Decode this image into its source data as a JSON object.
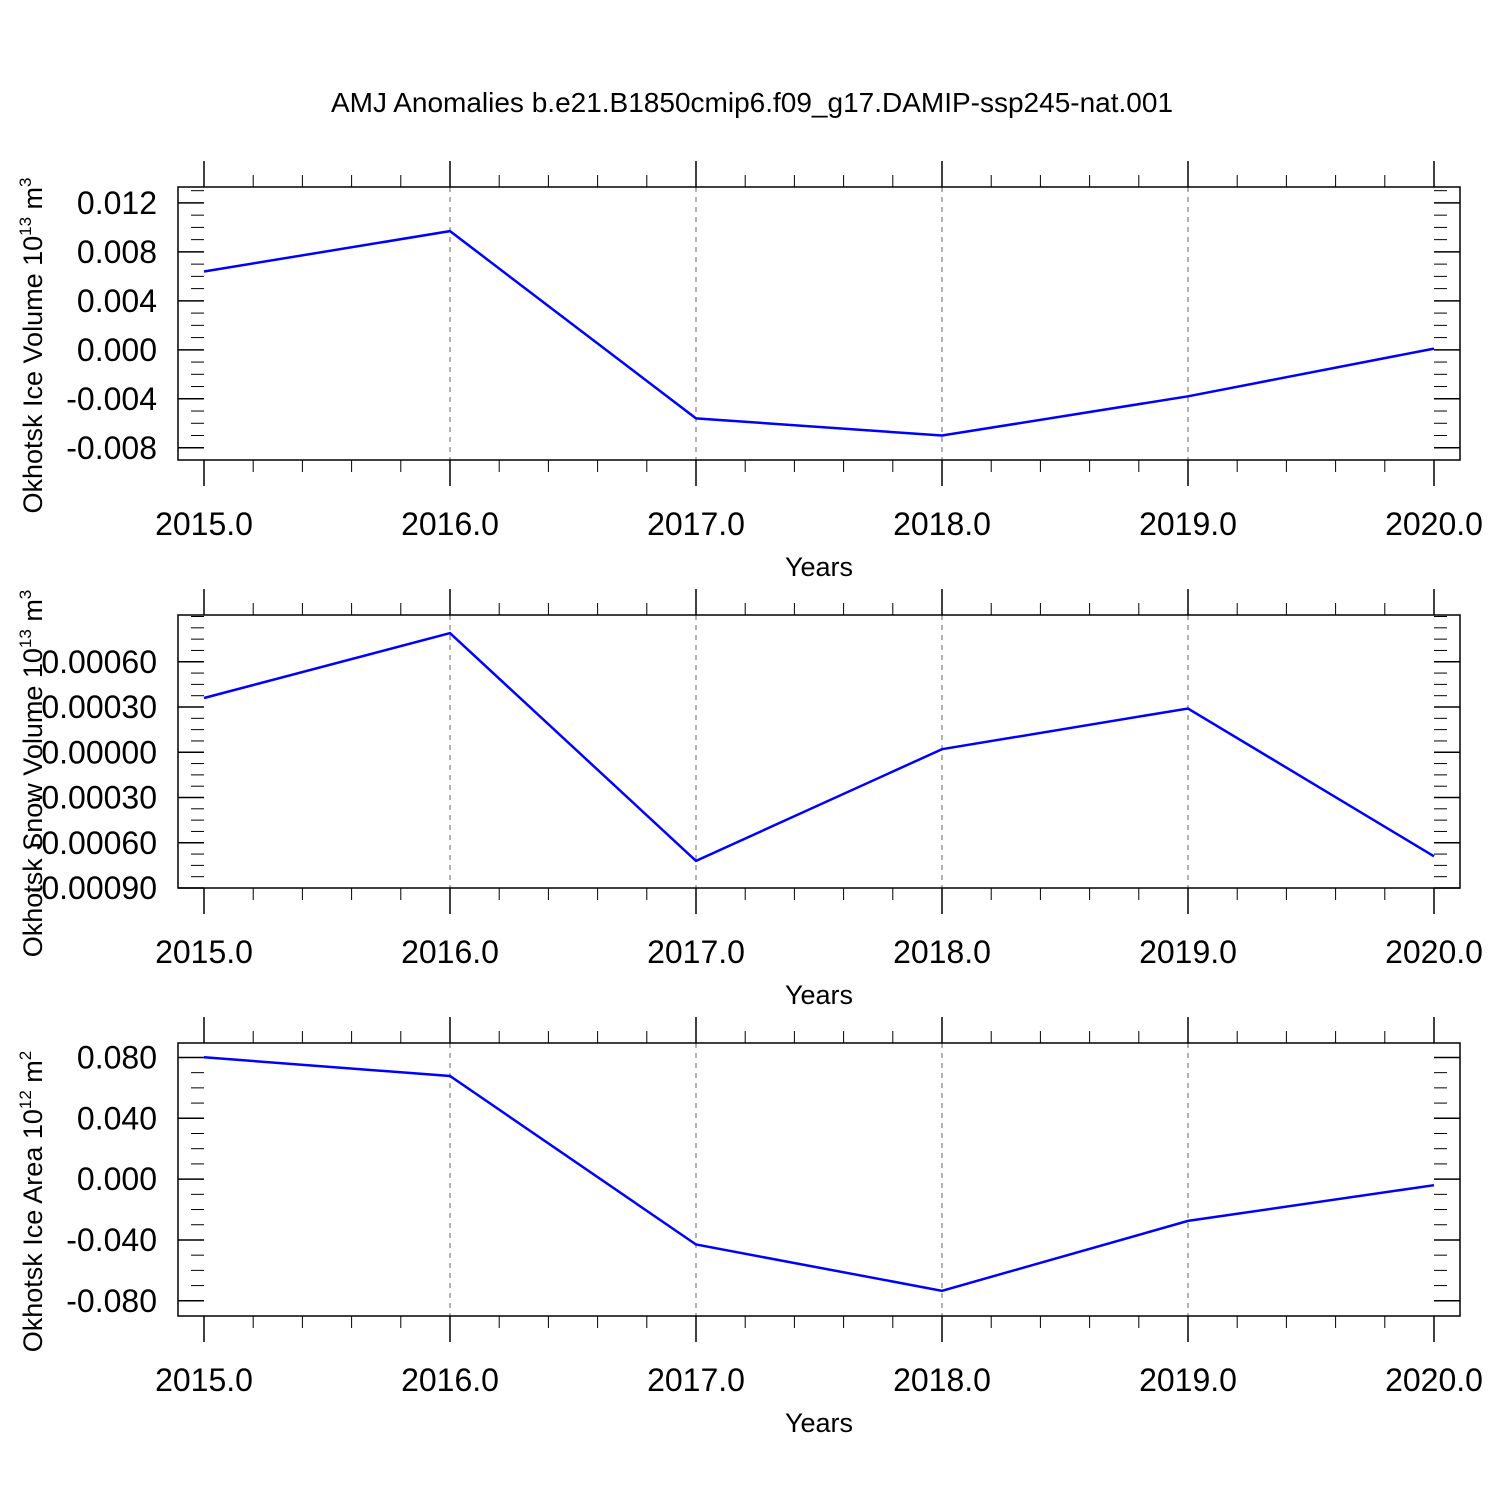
{
  "title": "AMJ Anomalies b.e21.B1850cmip6.f09_g17.DAMIP-ssp245-nat.001",
  "colors": {
    "line": "#0000ff",
    "axis": "#000000",
    "grid": "#999999"
  },
  "chart_data": [
    {
      "type": "line",
      "ylabel": "Okhotsk Ice Volume 10",
      "ylabel_exp": "13",
      "ylabel_unit": " m",
      "ylabel_unit_exp": "3",
      "xlabel": "Years",
      "xlim": [
        2015,
        2020
      ],
      "ylim": [
        -0.009,
        0.0133
      ],
      "x_ticks": [
        2015,
        2016,
        2017,
        2018,
        2019,
        2020
      ],
      "x_tick_labels": [
        "2015.0",
        "2016.0",
        "2017.0",
        "2018.0",
        "2019.0",
        "2020.0"
      ],
      "y_ticks": [
        0.012,
        0.008,
        0.004,
        0.0,
        -0.004,
        -0.008
      ],
      "y_tick_labels": [
        "0.012",
        "0.008",
        "0.004",
        "0.000",
        "-0.004",
        "-0.008"
      ],
      "grid": "x dashed",
      "series": [
        {
          "x": [
            2015,
            2016,
            2017,
            2018,
            2019,
            2020
          ],
          "y": [
            0.0064,
            0.0097,
            -0.0056,
            -0.007,
            -0.0038,
            0.0001
          ]
        }
      ]
    },
    {
      "type": "line",
      "ylabel": "Okhotsk Snow Volume 10",
      "ylabel_exp": "13",
      "ylabel_unit": " m",
      "ylabel_unit_exp": "3",
      "xlabel": "Years",
      "xlim": [
        2015,
        2020
      ],
      "ylim": [
        -0.0009,
        0.00091
      ],
      "x_ticks": [
        2015,
        2016,
        2017,
        2018,
        2019,
        2020
      ],
      "x_tick_labels": [
        "2015.0",
        "2016.0",
        "2017.0",
        "2018.0",
        "2019.0",
        "2020.0"
      ],
      "y_ticks": [
        0.0006,
        0.0003,
        0.0,
        -0.0003,
        -0.0006,
        -0.0009
      ],
      "y_tick_labels": [
        "0.00060",
        "0.00030",
        "0.00000",
        "-0.00030",
        "-0.00060",
        "-0.00090"
      ],
      "grid": "x dashed",
      "series": [
        {
          "x": [
            2015,
            2016,
            2017,
            2018,
            2019,
            2020
          ],
          "y": [
            0.00036,
            0.00079,
            -0.00072,
            2e-05,
            0.00029,
            -0.00069
          ]
        }
      ]
    },
    {
      "type": "line",
      "ylabel": "Okhotsk Ice Area 10",
      "ylabel_exp": "12",
      "ylabel_unit": " m",
      "ylabel_unit_exp": "2",
      "xlabel": "Years",
      "xlim": [
        2015,
        2020
      ],
      "ylim": [
        -0.09,
        0.0895
      ],
      "x_ticks": [
        2015,
        2016,
        2017,
        2018,
        2019,
        2020
      ],
      "x_tick_labels": [
        "2015.0",
        "2016.0",
        "2017.0",
        "2018.0",
        "2019.0",
        "2020.0"
      ],
      "y_ticks": [
        0.08,
        0.04,
        0.0,
        -0.04,
        -0.08
      ],
      "y_tick_labels": [
        "0.080",
        "0.040",
        "0.000",
        "-0.040",
        "-0.080"
      ],
      "grid": "x dashed",
      "series": [
        {
          "x": [
            2015,
            2016,
            2017,
            2018,
            2019,
            2020
          ],
          "y": [
            0.0801,
            0.0678,
            -0.043,
            -0.0734,
            -0.0275,
            -0.004
          ]
        }
      ]
    }
  ]
}
